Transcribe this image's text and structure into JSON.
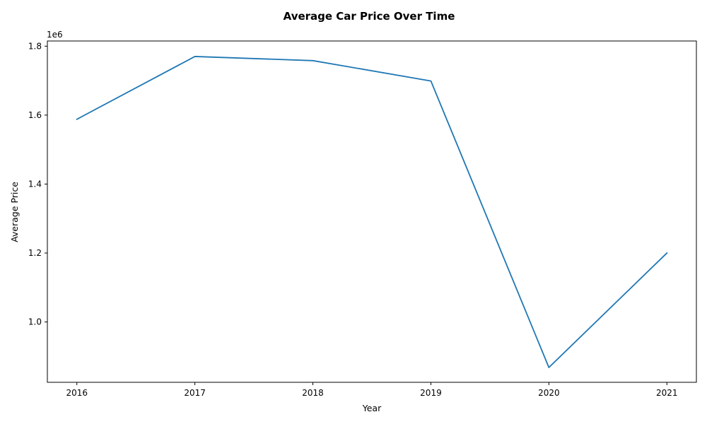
{
  "chart_data": {
    "type": "line",
    "title": "Average Car Price Over Time",
    "xlabel": "Year",
    "ylabel": "Average Price",
    "y_offset_label": "1e6",
    "x": [
      2016,
      2017,
      2018,
      2019,
      2020,
      2021
    ],
    "x_tick_labels": [
      "2016",
      "2017",
      "2018",
      "2019",
      "2020",
      "2021"
    ],
    "xlim": [
      2015.75,
      2021.25
    ],
    "y_ticks": [
      1.0,
      1.2,
      1.4,
      1.6,
      1.8
    ],
    "y_tick_labels": [
      "1.0",
      "1.2",
      "1.4",
      "1.6",
      "1.8"
    ],
    "ylim": [
      0.825,
      1.815
    ],
    "y_scale_note": "values in millions (1e6)",
    "series": [
      {
        "values": [
          1.588,
          1.77,
          1.758,
          1.699,
          0.868,
          1.2
        ],
        "color": "#1f77b4"
      }
    ],
    "grid": false,
    "legend": "none"
  }
}
